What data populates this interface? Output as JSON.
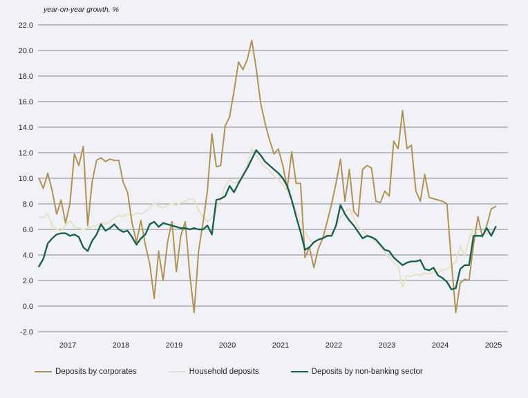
{
  "title": "year-on-year growth, %",
  "background_color": "#f1f2f7",
  "grid_color": "#85878b",
  "text_color": "#1f1f1f",
  "chart_data": {
    "type": "line",
    "title": "year-on-year growth, %",
    "x_start": "2016-12",
    "x_step": "1 month",
    "x_tick_labels": [
      "2017",
      "2018",
      "2019",
      "2020",
      "2021",
      "2022",
      "2023",
      "2024",
      "2025"
    ],
    "y_tick_labels": [
      "22.0",
      "20.0",
      "18.0",
      "16.0",
      "14.0",
      "12.0",
      "10.0",
      "8.0",
      "6.0",
      "4.0",
      "2.0",
      "0.0",
      "-2.0"
    ],
    "ylim": [
      -2,
      22
    ],
    "grid": "horizontal",
    "legend_position": "bottom",
    "series": [
      {
        "name": "Deposits by corporates",
        "color": "#b09354",
        "stroke_width": 2,
        "values": [
          10.0,
          9.2,
          10.4,
          9.0,
          7.2,
          8.3,
          6.5,
          8.0,
          11.9,
          11.0,
          12.5,
          6.3,
          9.7,
          11.4,
          11.6,
          11.3,
          11.5,
          11.4,
          11.4,
          9.7,
          8.9,
          6.5,
          5.0,
          6.7,
          4.8,
          3.3,
          0.6,
          4.3,
          2.0,
          5.0,
          6.6,
          2.7,
          5.5,
          6.6,
          2.5,
          -0.5,
          4.3,
          6.5,
          9.0,
          13.5,
          10.9,
          11.0,
          14.1,
          14.8,
          16.8,
          19.1,
          18.5,
          19.3,
          20.8,
          18.6,
          15.9,
          14.3,
          13.0,
          11.9,
          12.3,
          11.0,
          9.2,
          12.1,
          9.6,
          9.6,
          3.8,
          4.6,
          3.0,
          4.5,
          5.3,
          6.6,
          8.0,
          9.6,
          11.5,
          8.2,
          10.7,
          7.4,
          7.0,
          10.7,
          11.0,
          10.8,
          8.2,
          8.1,
          9.0,
          8.6,
          12.9,
          12.3,
          15.3,
          12.3,
          12.6,
          9.0,
          8.2,
          10.3,
          8.5,
          8.4,
          8.3,
          8.2,
          8.0,
          3.5,
          -0.5,
          1.8,
          2.1,
          2.0,
          4.8,
          7.0,
          5.4,
          6.3,
          7.6,
          7.8
        ]
      },
      {
        "name": "Household deposits",
        "color": "#e8dfc4",
        "stroke_width": 2,
        "values": [
          7.0,
          6.9,
          7.2,
          6.3,
          6.0,
          5.9,
          6.3,
          6.7,
          6.2,
          6.1,
          6.0,
          6.1,
          6.2,
          6.3,
          6.5,
          6.4,
          6.6,
          6.9,
          7.1,
          7.0,
          7.2,
          7.1,
          7.3,
          7.2,
          7.4,
          7.7,
          8.1,
          7.8,
          7.7,
          7.9,
          8.0,
          7.9,
          8.1,
          8.2,
          8.4,
          8.3,
          7.5,
          7.0,
          6.6,
          6.9,
          7.6,
          8.3,
          9.4,
          9.9,
          9.6,
          9.8,
          10.4,
          11.0,
          12.3,
          11.8,
          11.3,
          10.9,
          10.6,
          10.2,
          9.9,
          9.5,
          9.0,
          8.3,
          7.5,
          6.6,
          5.8,
          5.2,
          4.9,
          5.2,
          5.4,
          5.6,
          5.7,
          6.2,
          6.9,
          7.4,
          7.6,
          6.9,
          6.2,
          5.9,
          5.6,
          5.3,
          5.0,
          4.6,
          4.2,
          3.8,
          3.4,
          3.1,
          1.5,
          2.4,
          2.3,
          2.5,
          2.4,
          2.6,
          2.5,
          2.7,
          2.6,
          2.8,
          2.9,
          3.1,
          3.5,
          4.7,
          3.9,
          5.2,
          6.1,
          5.5,
          5.6,
          5.7,
          5.8,
          6.0
        ]
      },
      {
        "name": "Deposits by non-banking sector",
        "color": "#19614e",
        "stroke_width": 2.4,
        "values": [
          3.1,
          3.7,
          4.9,
          5.3,
          5.6,
          5.7,
          5.7,
          5.5,
          5.6,
          5.4,
          4.6,
          4.3,
          5.1,
          5.6,
          6.4,
          5.9,
          6.1,
          6.4,
          6.0,
          5.8,
          5.9,
          5.4,
          4.8,
          5.3,
          5.6,
          6.4,
          6.6,
          6.2,
          6.5,
          6.4,
          6.3,
          6.2,
          6.1,
          6.1,
          6.0,
          6.1,
          6.0,
          6.0,
          6.3,
          5.6,
          8.3,
          8.4,
          8.6,
          9.4,
          8.9,
          9.6,
          10.2,
          10.8,
          11.5,
          12.2,
          11.8,
          11.3,
          11.0,
          10.7,
          10.4,
          10.0,
          9.4,
          8.3,
          7.0,
          5.8,
          4.4,
          4.6,
          5.0,
          5.2,
          5.3,
          5.5,
          5.5,
          6.3,
          7.9,
          7.2,
          6.7,
          6.3,
          5.8,
          5.3,
          5.5,
          5.4,
          5.2,
          4.8,
          4.4,
          4.3,
          3.8,
          3.5,
          3.2,
          3.4,
          3.5,
          3.5,
          3.6,
          2.9,
          2.8,
          3.0,
          2.4,
          2.2,
          1.9,
          1.3,
          1.4,
          2.9,
          3.2,
          3.2,
          5.5,
          5.5,
          5.5,
          6.1,
          5.5,
          6.2
        ]
      }
    ]
  }
}
